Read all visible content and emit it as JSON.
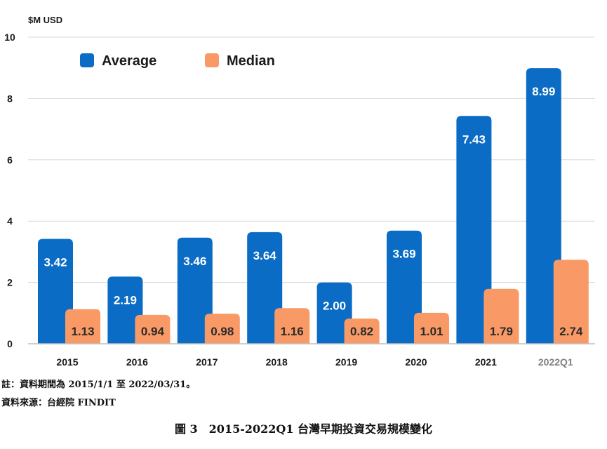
{
  "chart_data": {
    "type": "bar",
    "ylabel": "$M USD",
    "ylim": [
      0,
      10
    ],
    "yticks": [
      0,
      2,
      4,
      6,
      8,
      10
    ],
    "categories": [
      "2015",
      "2016",
      "2017",
      "2018",
      "2019",
      "2020",
      "2021",
      "2022Q1"
    ],
    "series": [
      {
        "name": "Average",
        "color": "#0a6cc4",
        "values": [
          3.42,
          2.19,
          3.46,
          3.64,
          2.0,
          3.69,
          7.43,
          8.99
        ],
        "labels": [
          "3.42",
          "2.19",
          "3.46",
          "3.64",
          "2.00",
          "3.69",
          "7.43",
          "8.99"
        ]
      },
      {
        "name": "Median",
        "color": "#f99a66",
        "values": [
          1.13,
          0.94,
          0.98,
          1.16,
          0.82,
          1.01,
          1.79,
          2.74
        ],
        "labels": [
          "1.13",
          "0.94",
          "0.98",
          "1.16",
          "0.82",
          "1.01",
          "1.79",
          "2.74"
        ]
      }
    ],
    "grid": true,
    "legend": "top-left",
    "highlight_category_color": "#808080"
  },
  "notes": {
    "line1": "註：資料期間為 2015/1/1 至 2022/03/31。",
    "line2": "資料來源：台經院 FINDIT"
  },
  "caption": "圖 3　2015-2022Q1 台灣早期投資交易規模變化"
}
